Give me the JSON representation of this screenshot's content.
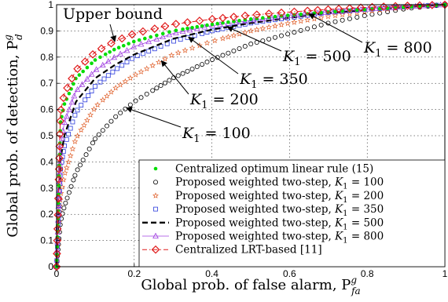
{
  "chart_data": {
    "type": "line",
    "xlabel": "Global prob. of false alarm, P",
    "xlabel_sup": "g",
    "xlabel_sub": "fa",
    "ylabel": "Global prob. of detection, P",
    "ylabel_sup": "g",
    "ylabel_sub": "d",
    "xlim": [
      0,
      1
    ],
    "ylim": [
      0,
      1
    ],
    "xticks": [
      0,
      0.2,
      0.4,
      0.6,
      0.8,
      1
    ],
    "yticks": [
      0,
      0.1,
      0.2,
      0.3,
      0.4,
      0.5,
      0.6,
      0.7,
      0.8,
      0.9,
      1
    ],
    "xtick_labels": [
      "0",
      "0.2",
      "0.4",
      "0.6",
      "0.8",
      "1"
    ],
    "ytick_labels": [
      "0",
      "0.1",
      "0.2",
      "0.3",
      "0.4",
      "0.5",
      "0.6",
      "0.7",
      "0.8",
      "0.9",
      "1"
    ],
    "grid": true,
    "legend_position": "bottom-right",
    "series": [
      {
        "name": "Centralized optimum linear rule (15)",
        "color": "#00dd00",
        "marker": "dot",
        "line": "none",
        "x": [
          0,
          0.01,
          0.02,
          0.05,
          0.1,
          0.15,
          0.2,
          0.3,
          0.4,
          0.5,
          0.6,
          0.7,
          0.8,
          0.9,
          1.0
        ],
        "y": [
          0,
          0.55,
          0.62,
          0.72,
          0.79,
          0.83,
          0.86,
          0.9,
          0.925,
          0.945,
          0.96,
          0.972,
          0.982,
          0.991,
          1.0
        ]
      },
      {
        "name": "Proposed weighted two-step, K1 = 100",
        "color": "#000000",
        "marker": "circle",
        "line": "none",
        "x": [
          0,
          0.01,
          0.02,
          0.05,
          0.1,
          0.15,
          0.2,
          0.3,
          0.4,
          0.5,
          0.6,
          0.7,
          0.8,
          0.9,
          1.0
        ],
        "y": [
          0,
          0.17,
          0.23,
          0.36,
          0.49,
          0.57,
          0.63,
          0.72,
          0.79,
          0.85,
          0.89,
          0.93,
          0.96,
          0.985,
          1.0
        ]
      },
      {
        "name": "Proposed weighted two-step, K1 = 200",
        "color": "#e0602b",
        "marker": "star",
        "line": "none",
        "x": [
          0,
          0.01,
          0.02,
          0.05,
          0.1,
          0.15,
          0.2,
          0.3,
          0.4,
          0.5,
          0.6,
          0.7,
          0.8,
          0.9,
          1.0
        ],
        "y": [
          0,
          0.27,
          0.35,
          0.49,
          0.61,
          0.68,
          0.73,
          0.81,
          0.86,
          0.9,
          0.93,
          0.955,
          0.975,
          0.99,
          1.0
        ]
      },
      {
        "name": "Proposed weighted two-step, K1 = 350",
        "color": "#2b3bdc",
        "marker": "square",
        "line": "none",
        "x": [
          0,
          0.01,
          0.02,
          0.05,
          0.1,
          0.15,
          0.2,
          0.3,
          0.4,
          0.5,
          0.6,
          0.7,
          0.8,
          0.9,
          1.0
        ],
        "y": [
          0,
          0.37,
          0.46,
          0.59,
          0.69,
          0.75,
          0.8,
          0.86,
          0.9,
          0.93,
          0.95,
          0.97,
          0.982,
          0.992,
          1.0
        ]
      },
      {
        "name": "Proposed weighted two-step, K1 = 500",
        "color": "#000000",
        "marker": "none",
        "line": "dashed",
        "x": [
          0,
          0.01,
          0.02,
          0.05,
          0.1,
          0.15,
          0.2,
          0.3,
          0.4,
          0.5,
          0.6,
          0.7,
          0.8,
          0.9,
          1.0
        ],
        "y": [
          0,
          0.41,
          0.5,
          0.63,
          0.72,
          0.77,
          0.81,
          0.87,
          0.905,
          0.93,
          0.95,
          0.968,
          0.981,
          0.991,
          1.0
        ]
      },
      {
        "name": "Proposed weighted two-step, K1 = 800",
        "color": "#a040e0",
        "marker": "triangle",
        "line": "solid",
        "x": [
          0,
          0.01,
          0.02,
          0.05,
          0.1,
          0.15,
          0.2,
          0.3,
          0.4,
          0.5,
          0.6,
          0.7,
          0.8,
          0.9,
          1.0
        ],
        "y": [
          0,
          0.46,
          0.55,
          0.67,
          0.75,
          0.8,
          0.84,
          0.89,
          0.92,
          0.94,
          0.958,
          0.972,
          0.983,
          0.992,
          1.0
        ]
      },
      {
        "name": "Centralized LRT-based [11]",
        "color": "#e01b1b",
        "marker": "diamond",
        "line": "dashdot",
        "x": [
          0,
          0.01,
          0.02,
          0.05,
          0.1,
          0.15,
          0.2,
          0.3,
          0.4,
          0.5,
          0.6,
          0.7,
          0.8,
          0.9,
          1.0
        ],
        "y": [
          0,
          0.59,
          0.66,
          0.75,
          0.82,
          0.86,
          0.89,
          0.925,
          0.945,
          0.96,
          0.972,
          0.982,
          0.99,
          0.996,
          1.0
        ]
      }
    ],
    "annotations": [
      {
        "text": "Upper bound",
        "kind": "plain",
        "target_series": 6,
        "target_x": 0.15
      },
      {
        "text": "K",
        "sub": "1",
        "value": " = 100",
        "target_series": 1,
        "target_x": 0.18
      },
      {
        "text": "K",
        "sub": "1",
        "value": " = 200",
        "target_series": 2,
        "target_x": 0.27
      },
      {
        "text": "K",
        "sub": "1",
        "value": " = 350",
        "target_series": 3,
        "target_x": 0.34
      },
      {
        "text": "K",
        "sub": "1",
        "value": " = 500",
        "target_series": 4,
        "target_x": 0.44
      },
      {
        "text": "K",
        "sub": "1",
        "value": " = 800",
        "target_series": 5,
        "target_x": 0.65
      }
    ]
  }
}
